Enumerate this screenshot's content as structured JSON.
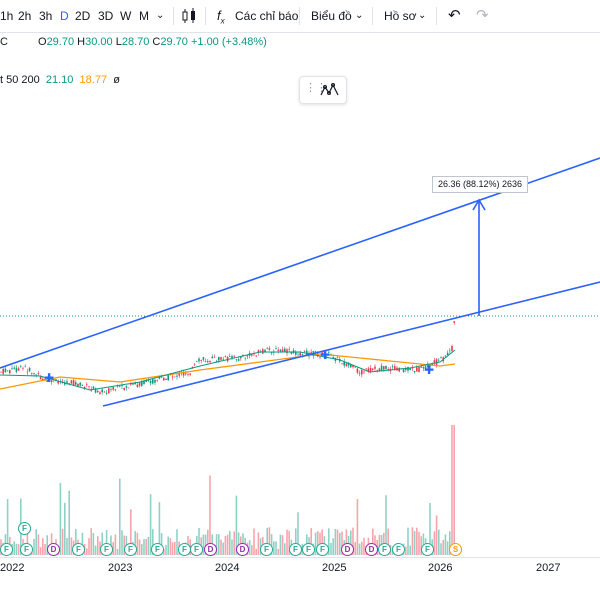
{
  "toolbar": {
    "intervals": [
      "1h",
      "2h",
      "3h",
      "D",
      "2D",
      "3D",
      "W",
      "M"
    ],
    "active_interval": "D",
    "indicators_label": "Các chỉ báo",
    "chart_type_label": "Biểu đồ",
    "profile_label": "Hồ sơ"
  },
  "legend": {
    "symbol_tail": "C",
    "o_label": "O",
    "o_value": "29.70",
    "h_label": "H",
    "h_value": "30.00",
    "l_label": "L",
    "l_value": "28.70",
    "c_label": "C",
    "c_value": "29.70",
    "change": "+1.00 (+3.48%)",
    "ma_label": "t 50 200",
    "ma50": "21.10",
    "ma200": "18.77",
    "ma_extra": "ø"
  },
  "annotation": {
    "text": "26.36 (88.12%) 2636"
  },
  "x_axis": {
    "labels": [
      "2022",
      "2023",
      "2024",
      "2025",
      "2026",
      "2027"
    ]
  },
  "event_badges": [
    "F",
    "F",
    "D",
    "F",
    "F",
    "F",
    "F",
    "F",
    "F",
    "D",
    "D",
    "F",
    "F",
    "F",
    "F",
    "D",
    "D",
    "F",
    "F",
    "F",
    "S",
    "F",
    "F",
    "F",
    "F"
  ],
  "colors": {
    "accent": "#2962ff",
    "up": "#089981",
    "down": "#f23645",
    "ma200": "#ff9800",
    "drawing": "#2962ff"
  }
}
